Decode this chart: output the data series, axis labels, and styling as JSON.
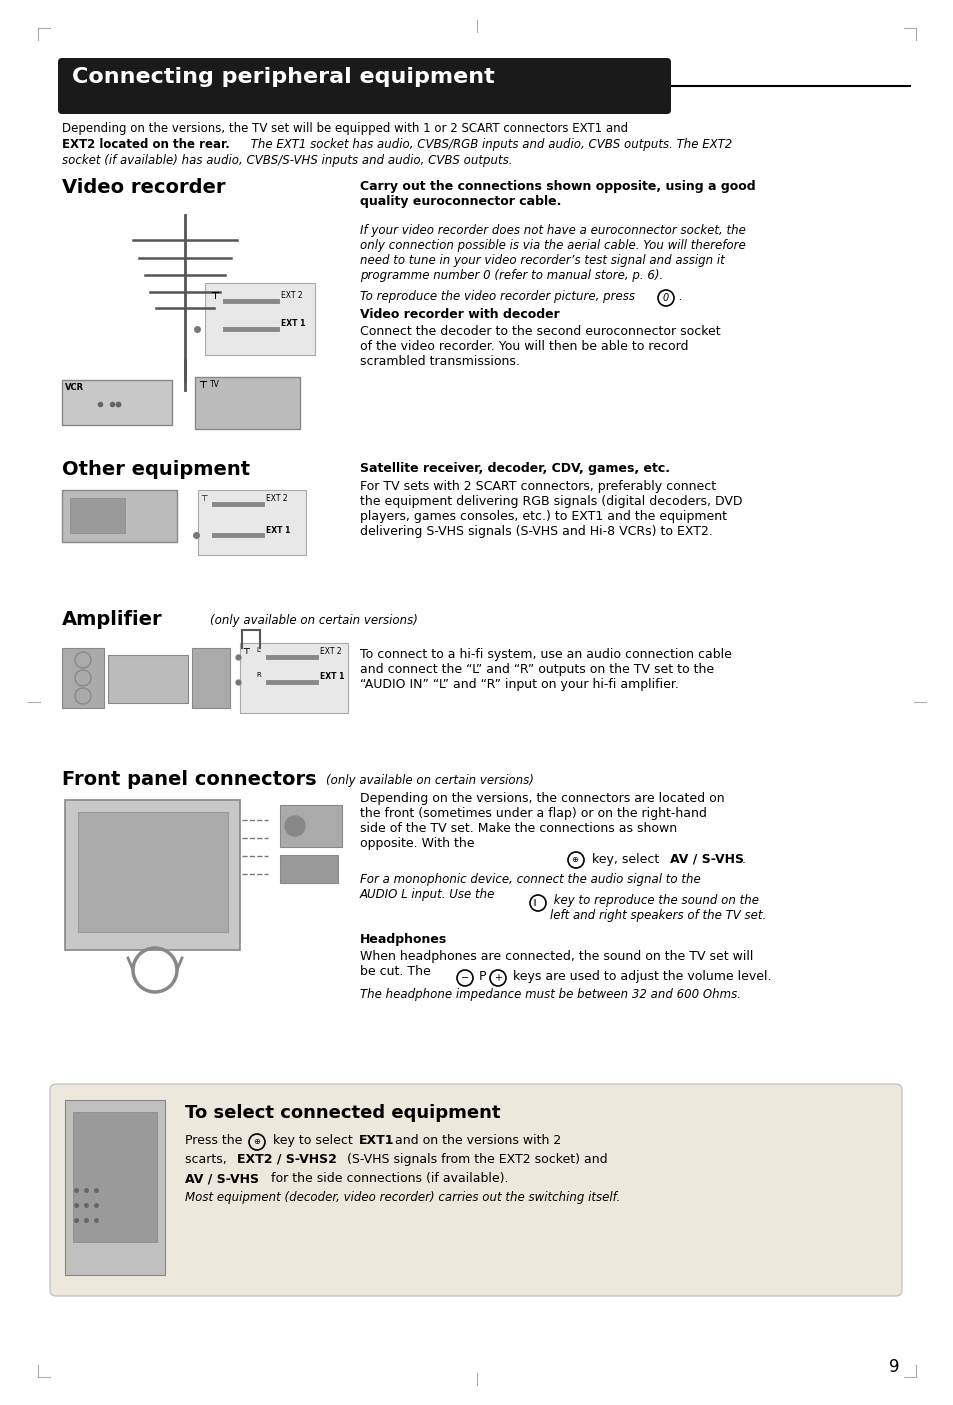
{
  "page_bg": "#ffffff",
  "main_title": "Connecting peripheral equipment",
  "main_title_bg": "#1a1a1a",
  "main_title_color": "#ffffff",
  "section1_title": "Video recorder",
  "section1_right_bold": "Carry out the connections shown opposite, using a good\nquality euroconnector cable.",
  "section1_sub_bold": "Video recorder with decoder",
  "section2_title": "Other equipment",
  "section2_right_bold": "Satellite receiver, decoder, CDV, games, etc.",
  "section3_title": "Amplifier",
  "section3_title_italic": "(only available on certain versions)",
  "section4_title": "Front panel connectors",
  "section4_title_italic": "(only available on certain versions)",
  "section4_sub_bold": "Headphones",
  "box_bg": "#ede8dc",
  "box_title": "To select connected equipment",
  "box_italic": "Most equipment (decoder, video recorder) carries out the switching itself.",
  "page_number": "9"
}
